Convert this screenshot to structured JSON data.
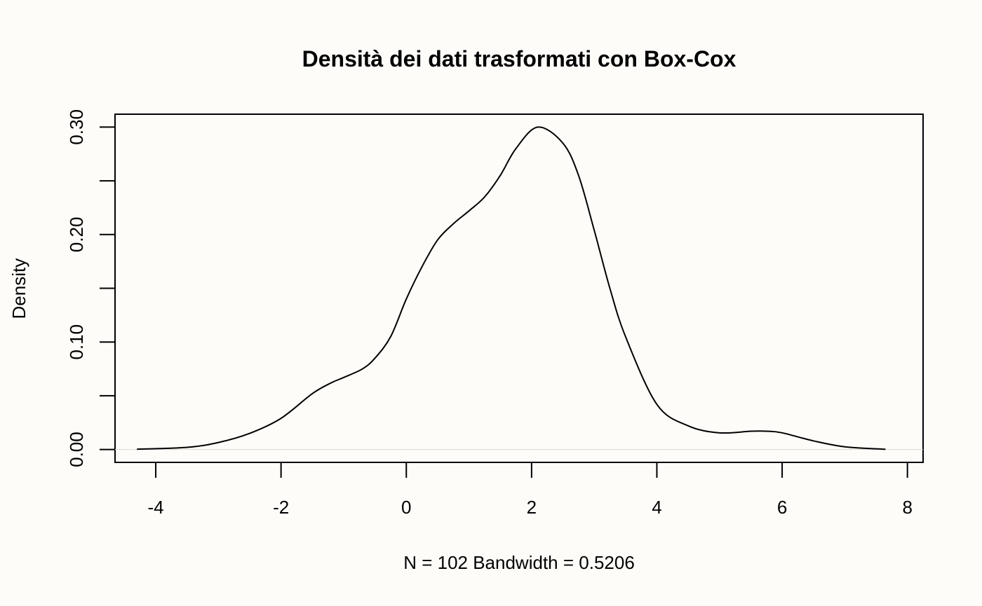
{
  "chart_data": {
    "type": "line",
    "title": "Densità dei dati trasformati con Box-Cox",
    "xlabel": "N = 102   Bandwidth = 0.5206",
    "ylabel": "Density",
    "xlim": [
      -4.65,
      8.25
    ],
    "ylim": [
      -0.012,
      0.312
    ],
    "x_ticks": [
      -4,
      -2,
      0,
      2,
      4,
      6,
      8
    ],
    "x_tick_labels": [
      "-4",
      "-2",
      "0",
      "2",
      "4",
      "6",
      "8"
    ],
    "y_ticks": [
      0,
      0.05,
      0.1,
      0.15,
      0.2,
      0.25,
      0.3
    ],
    "y_tick_labels": [
      "0.00",
      "",
      "0.10",
      "",
      "0.20",
      "",
      "0.30"
    ],
    "grid": false,
    "zero_line_color": "#d9d9d9",
    "line_color": "#000000",
    "series": [
      {
        "name": "density",
        "x": [
          -4.3,
          -3.5,
          -3,
          -2.5,
          -2,
          -1.5,
          -1.2,
          -1,
          -0.7,
          -0.5,
          -0.25,
          0,
          0.25,
          0.5,
          0.75,
          1,
          1.25,
          1.5,
          1.75,
          2.1,
          2.5,
          2.75,
          3,
          3.25,
          3.5,
          4,
          4.5,
          5,
          5.5,
          5.75,
          6,
          6.5,
          7,
          7.65
        ],
        "y": [
          0.0003,
          0.002,
          0.0065,
          0.015,
          0.029,
          0.052,
          0.062,
          0.067,
          0.075,
          0.085,
          0.105,
          0.14,
          0.17,
          0.195,
          0.21,
          0.222,
          0.235,
          0.255,
          0.28,
          0.3,
          0.285,
          0.255,
          0.204,
          0.15,
          0.105,
          0.042,
          0.022,
          0.0155,
          0.017,
          0.017,
          0.0155,
          0.008,
          0.0025,
          0.0002
        ]
      }
    ]
  }
}
